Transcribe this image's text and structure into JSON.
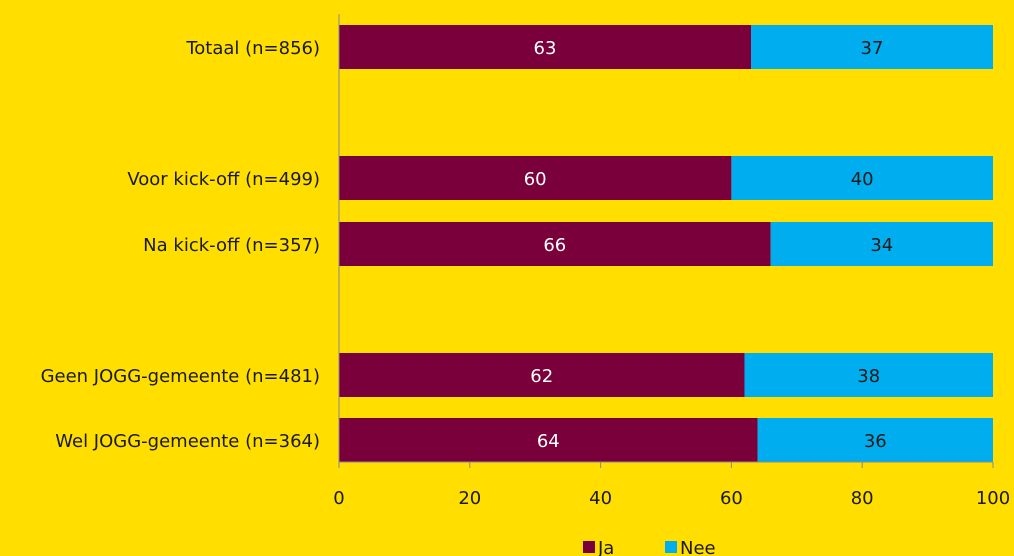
{
  "chart_data": {
    "type": "bar",
    "orientation": "horizontal",
    "stacked": true,
    "categories": [
      "Totaal (n=856)",
      "Voor kick-off (n=499)",
      "Na kick-off (n=357)",
      "Geen JOGG-gemeente (n=481)",
      "Wel JOGG-gemeente (n=364)"
    ],
    "series": [
      {
        "name": "Ja",
        "values": [
          63,
          60,
          66,
          62,
          64
        ],
        "color": "#7A003C",
        "label_color": "#ffffff"
      },
      {
        "name": "Nee",
        "values": [
          37,
          40,
          34,
          38,
          36
        ],
        "color": "#00AEEF",
        "label_color": "#1a1a1a"
      }
    ],
    "xlim": [
      0,
      100
    ],
    "xticks": [
      0,
      20,
      40,
      60,
      80,
      100
    ],
    "grid": false,
    "legend_position": "bottom",
    "background": "#FFDE00"
  }
}
